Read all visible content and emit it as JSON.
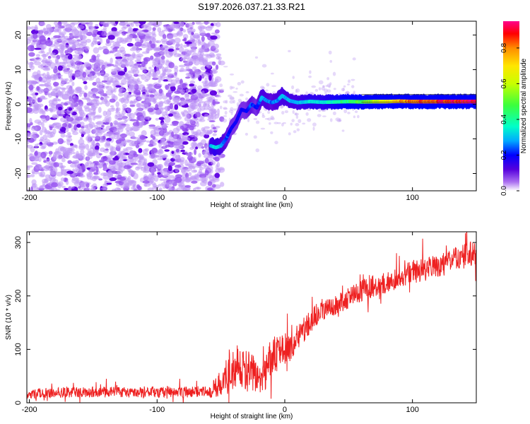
{
  "title": "S197.2026.037.21.33.R21",
  "colors": {
    "snr_line": "#ee2020",
    "spectrogram_low": "#8a2be2",
    "spectrogram_dark": "#5500dd",
    "frame": "#000000"
  },
  "chart_data": [
    {
      "id": "spectrogram",
      "type": "heatmap",
      "title": "S197.2026.037.21.33.R21",
      "xlabel": "Height of straight line (km)",
      "ylabel": "Frequency (Hz)",
      "xlim": [
        -202,
        150
      ],
      "ylim": [
        -25,
        24
      ],
      "xticks": [
        -200,
        -100,
        0,
        100
      ],
      "yticks": [
        -20,
        -10,
        0,
        10,
        20
      ],
      "colorbar": {
        "label": "Normalized spectral amplitude",
        "range": [
          0.0,
          0.95
        ],
        "ticks": [
          0.0,
          0.2,
          0.4,
          0.6,
          0.8
        ],
        "tick_labels": [
          "0.0",
          "0.2",
          "0.4",
          "0.6",
          "0.8"
        ],
        "colormap": "rainbow"
      },
      "noise_region": {
        "x_range": [
          -202,
          -52
        ],
        "y_range": [
          -25,
          24
        ],
        "amplitude": 0.05
      },
      "signal_track": {
        "x": [
          -58,
          -54,
          -50,
          -46,
          -42,
          -38,
          -34,
          -30,
          -26,
          -22,
          -18,
          -14,
          -10,
          -6,
          -2,
          0,
          4,
          10,
          20,
          30,
          40,
          50,
          60,
          70,
          80,
          90,
          100,
          110,
          120,
          130,
          140,
          150
        ],
        "frequency": [
          -12,
          -12.5,
          -12,
          -10,
          -7,
          -5,
          -1.5,
          -2,
          0,
          -1,
          2,
          1,
          0.5,
          1,
          2.5,
          2,
          1,
          0.5,
          0.8,
          0.6,
          0.7,
          0.8,
          0.7,
          0.8,
          0.8,
          0.9,
          0.8,
          0.8,
          0.8,
          0.8,
          0.8,
          0.8
        ],
        "amplitude": [
          0.3,
          0.35,
          0.3,
          0.25,
          0.2,
          0.2,
          0.2,
          0.2,
          0.25,
          0.2,
          0.3,
          0.28,
          0.25,
          0.28,
          0.3,
          0.3,
          0.3,
          0.3,
          0.35,
          0.35,
          0.4,
          0.45,
          0.5,
          0.6,
          0.7,
          0.8,
          0.85,
          0.9,
          0.9,
          0.92,
          0.95,
          0.95
        ]
      }
    },
    {
      "id": "snr",
      "type": "line",
      "xlabel": "Height of straight line (km)",
      "ylabel": "SNR (10 * v/v)",
      "xlim": [
        -202,
        150
      ],
      "ylim": [
        0,
        320
      ],
      "xticks": [
        -200,
        -100,
        0,
        100
      ],
      "yticks": [
        0,
        100,
        200,
        300
      ],
      "series": [
        {
          "name": "SNR",
          "x": [
            -202,
            -190,
            -170,
            -150,
            -120,
            -100,
            -80,
            -60,
            -52,
            -45,
            -40,
            -35,
            -30,
            -25,
            -20,
            -15,
            -10,
            -5,
            0,
            5,
            10,
            15,
            20,
            25,
            30,
            40,
            50,
            60,
            70,
            80,
            90,
            100,
            110,
            120,
            130,
            140,
            150
          ],
          "y": [
            15,
            18,
            20,
            20,
            20,
            20,
            20,
            22,
            30,
            50,
            65,
            70,
            60,
            55,
            45,
            60,
            90,
            95,
            100,
            110,
            120,
            135,
            150,
            165,
            175,
            185,
            195,
            210,
            220,
            225,
            235,
            245,
            250,
            255,
            265,
            275,
            280
          ],
          "noise_amplitude": [
            8,
            10,
            10,
            10,
            10,
            10,
            10,
            12,
            25,
            35,
            40,
            40,
            40,
            35,
            30,
            35,
            35,
            30,
            30,
            30,
            25,
            25,
            22,
            22,
            20,
            20,
            20,
            20,
            20,
            20,
            20,
            22,
            22,
            22,
            22,
            24,
            24
          ]
        }
      ]
    }
  ]
}
